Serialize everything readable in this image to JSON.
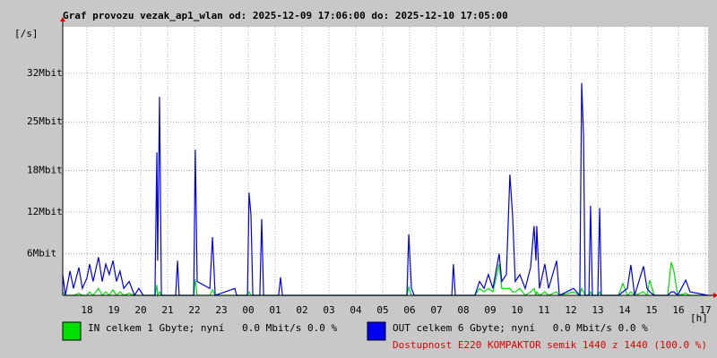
{
  "chart_data": {
    "type": "line",
    "title": "Graf provozu vezak_ap1_wlan od: 2025-12-09 17:06:00 do: 2025-12-10 17:05:00",
    "y_label": "[/s]",
    "x_label": "[h]",
    "annotation": "Dostupnost E220 KOMPAKTOR semik 1440 z 1440 (100.0 %)",
    "annotation_color": "#e00000",
    "grid": true,
    "xlim": [
      0,
      24
    ],
    "xticks": [
      {
        "value": 0.9,
        "label": "18"
      },
      {
        "value": 1.9,
        "label": "19"
      },
      {
        "value": 2.9,
        "label": "20"
      },
      {
        "value": 3.9,
        "label": "21"
      },
      {
        "value": 4.9,
        "label": "22"
      },
      {
        "value": 5.9,
        "label": "23"
      },
      {
        "value": 6.9,
        "label": "00"
      },
      {
        "value": 7.9,
        "label": "01"
      },
      {
        "value": 8.9,
        "label": "02"
      },
      {
        "value": 9.9,
        "label": "03"
      },
      {
        "value": 10.9,
        "label": "04"
      },
      {
        "value": 11.9,
        "label": "05"
      },
      {
        "value": 12.9,
        "label": "06"
      },
      {
        "value": 13.9,
        "label": "07"
      },
      {
        "value": 14.9,
        "label": "08"
      },
      {
        "value": 15.9,
        "label": "09"
      },
      {
        "value": 16.9,
        "label": "10"
      },
      {
        "value": 17.9,
        "label": "11"
      },
      {
        "value": 18.9,
        "label": "12"
      },
      {
        "value": 19.9,
        "label": "13"
      },
      {
        "value": 20.9,
        "label": "14"
      },
      {
        "value": 21.9,
        "label": "15"
      },
      {
        "value": 22.9,
        "label": "16"
      },
      {
        "value": 23.9,
        "label": "17"
      }
    ],
    "ylim": [
      0,
      38.7
    ],
    "yticks": [
      {
        "value": 6,
        "label": "6Mbit"
      },
      {
        "value": 12,
        "label": "12Mbit"
      },
      {
        "value": 18,
        "label": "18Mbit"
      },
      {
        "value": 25,
        "label": "25Mbit"
      },
      {
        "value": 32,
        "label": "32Mbit"
      }
    ],
    "x": [
      0,
      0.1,
      0.27,
      0.4,
      0.6,
      0.73,
      0.9,
      1,
      1.13,
      1.33,
      1.47,
      1.6,
      1.73,
      1.87,
      2,
      2.13,
      2.27,
      2.47,
      2.67,
      2.83,
      3,
      3.43,
      3.5,
      3.53,
      3.6,
      3.67,
      4.2,
      4.27,
      4.33,
      4.87,
      4.93,
      5,
      5.47,
      5.57,
      5.67,
      6.4,
      6.47,
      6.87,
      6.93,
      7,
      7.07,
      7.33,
      7.4,
      7.47,
      8.03,
      8.1,
      8.17,
      12.8,
      12.87,
      12.97,
      13.07,
      14.47,
      14.53,
      14.6,
      15.33,
      15.5,
      15.67,
      15.83,
      16,
      16.23,
      16.33,
      16.5,
      16.63,
      16.73,
      16.83,
      17,
      17.2,
      17.4,
      17.53,
      17.6,
      17.63,
      17.73,
      17.93,
      18.07,
      18.37,
      18.47,
      19,
      19.23,
      19.3,
      19.37,
      19.43,
      19.57,
      19.63,
      19.7,
      19.9,
      19.97,
      20.03,
      20.67,
      20.83,
      21,
      21.13,
      21.27,
      21.6,
      21.73,
      21.83,
      22,
      22.5,
      22.63,
      22.73,
      22.87,
      23.17,
      23.33,
      24
    ],
    "series": [
      {
        "name": "IN celkem 1 Gbyte; nyní   0.0 Mbit/s 0.0 %",
        "color": "#00e000",
        "values": [
          0.5,
          0,
          0,
          0,
          0.3,
          0,
          0,
          0.5,
          0,
          1,
          0,
          0.5,
          0,
          0.8,
          0,
          0.5,
          0,
          0.3,
          0,
          0,
          0,
          0,
          1.5,
          0,
          0.5,
          0,
          0,
          0,
          0,
          0,
          2.3,
          0,
          0,
          0.8,
          0,
          0,
          0,
          0,
          0.5,
          0,
          0,
          0,
          0,
          0,
          0,
          0,
          0,
          0,
          1.2,
          0,
          0,
          0,
          0,
          0,
          0,
          1,
          0.5,
          1,
          0.5,
          4.5,
          1,
          1,
          1,
          0.5,
          0.5,
          1,
          0,
          0.5,
          1,
          0,
          0.5,
          0,
          0.5,
          0,
          0.5,
          0,
          0.5,
          0,
          1,
          0.5,
          0,
          0,
          0.5,
          0,
          0,
          0.5,
          0,
          0,
          1.7,
          0,
          0.5,
          0,
          0.5,
          0,
          2.2,
          0,
          0,
          4.8,
          3.5,
          0,
          0.3,
          0,
          0
        ]
      },
      {
        "name": "OUT celkem 6 Gbyte; nyní   0.0 Mbit/s 0.0 %",
        "color": "#0000f0",
        "values": [
          3,
          0,
          3.5,
          1,
          4,
          1,
          2.5,
          4.5,
          2,
          5.5,
          2,
          4.5,
          3,
          5,
          2,
          3.5,
          1,
          2,
          0,
          1,
          0,
          0,
          20.6,
          5,
          28.6,
          0,
          0,
          5,
          0,
          0,
          21,
          2,
          1,
          8.4,
          0,
          1,
          0,
          0,
          14.8,
          11.6,
          0,
          0,
          11,
          0,
          0,
          2.6,
          0,
          0,
          8.8,
          1,
          0,
          0,
          4.5,
          0,
          0,
          2,
          1,
          3,
          1,
          6,
          2,
          3,
          17.4,
          11.6,
          2,
          3,
          1,
          4,
          10,
          5,
          10,
          1,
          4.5,
          1,
          5,
          0,
          1,
          0,
          30.6,
          23,
          0,
          0,
          12.9,
          0,
          0,
          12.6,
          0,
          0,
          0.5,
          1,
          4.4,
          0,
          4.2,
          1,
          0.5,
          0,
          0,
          0.5,
          0.5,
          0,
          2.2,
          0.5,
          0
        ]
      }
    ]
  }
}
